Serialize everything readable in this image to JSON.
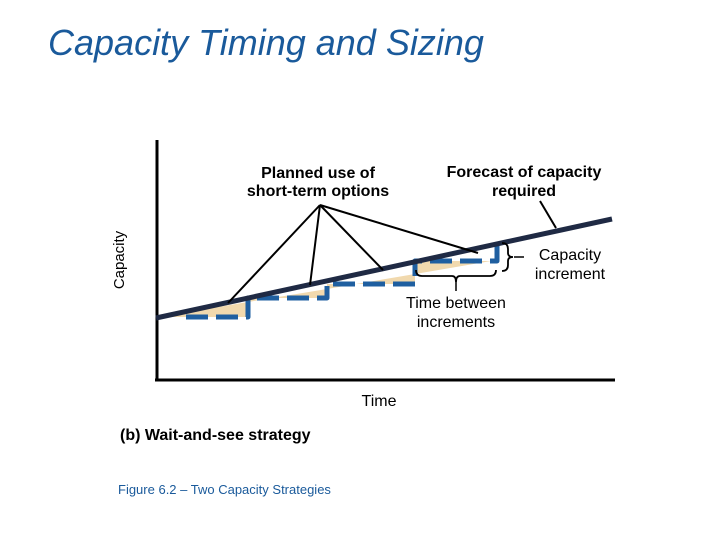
{
  "title": "Capacity Timing and Sizing",
  "diagram": {
    "y_axis_label": "Capacity",
    "x_axis_label": "Time",
    "planned_use_label": [
      "Planned use of",
      "short-term options"
    ],
    "forecast_label": [
      "Forecast of capacity",
      "required"
    ],
    "capacity_increment_label": [
      "Capacity",
      "increment"
    ],
    "time_between_label": [
      "Time between",
      "increments"
    ],
    "colors": {
      "axis": "#000000",
      "forecast_line": "#1f2a44",
      "capacity_steps": "#1f5fa0",
      "shortfall_fill": "#f1d9ae"
    }
  },
  "caption": "(b) Wait-and-see strategy",
  "figure_caption": "Figure 6.2 – Two Capacity Strategies"
}
